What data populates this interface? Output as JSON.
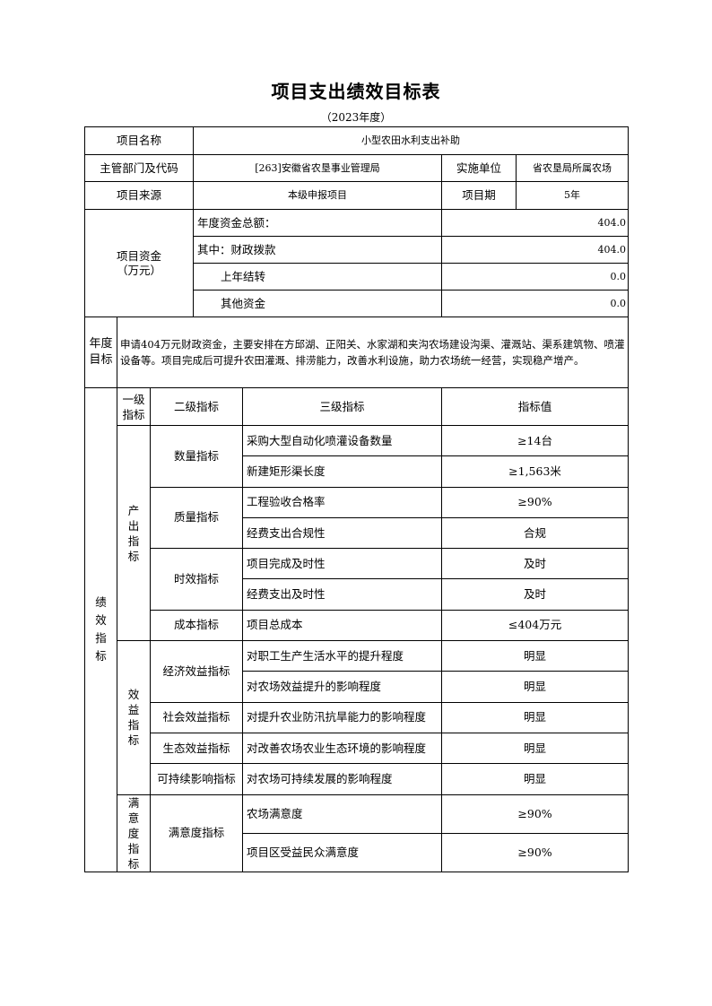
{
  "title": "项目支出绩效目标表",
  "subtitle": "（2023年度）",
  "basic": {
    "project_name_label": "项目名称",
    "project_name": "小型农田水利支出补助",
    "dept_label": "主管部门及代码",
    "dept": "[263]安徽省农垦事业管理局",
    "impl_label": "实施单位",
    "impl": "省农垦局所属农场",
    "source_label": "项目来源",
    "source": "本级申报项目",
    "period_label": "项目期",
    "period": "5年"
  },
  "funds": {
    "label": "项目资金\n（万元）",
    "rows": [
      {
        "label": "年度资金总额：",
        "value": "404.0"
      },
      {
        "label": "其中：财政拨款",
        "value": "404.0"
      },
      {
        "label": "上年结转",
        "value": "0.0"
      },
      {
        "label": "其他资金",
        "value": "0.0"
      }
    ]
  },
  "goal": {
    "label": "年度目标",
    "text": "申请404万元财政资金，主要安排在方邱湖、正阳关、水家湖和夹沟农场建设沟渠、灌溉站、渠系建筑物、喷灌设备等。项目完成后可提升农田灌溉、排涝能力，改善水利设施，助力农场统一经营，实现稳产增产。"
  },
  "performance": {
    "label": "绩效指标",
    "headers": [
      "一级指标",
      "二级指标",
      "三级指标",
      "指标值"
    ],
    "groups": [
      {
        "level1": "产出指标",
        "subs": [
          {
            "level2": "数量指标",
            "items": [
              {
                "level3": "采购大型自动化喷灌设备数量",
                "value": "≥14台"
              },
              {
                "level3": "新建矩形渠长度",
                "value": "≥1,563米"
              }
            ]
          },
          {
            "level2": "质量指标",
            "items": [
              {
                "level3": "工程验收合格率",
                "value": "≥90%"
              },
              {
                "level3": "经费支出合规性",
                "value": "合规"
              }
            ]
          },
          {
            "level2": "时效指标",
            "items": [
              {
                "level3": "项目完成及时性",
                "value": "及时"
              },
              {
                "level3": "经费支出及时性",
                "value": "及时"
              }
            ]
          },
          {
            "level2": "成本指标",
            "items": [
              {
                "level3": "项目总成本",
                "value": "≤404万元"
              }
            ]
          }
        ]
      },
      {
        "level1": "效益指标",
        "subs": [
          {
            "level2": "经济效益指标",
            "items": [
              {
                "level3": "对职工生产生活水平的提升程度",
                "value": "明显"
              },
              {
                "level3": "对农场效益提升的影响程度",
                "value": "明显"
              }
            ]
          },
          {
            "level2": "社会效益指标",
            "items": [
              {
                "level3": "对提升农业防汛抗旱能力的影响程度",
                "value": "明显"
              }
            ]
          },
          {
            "level2": "生态效益指标",
            "items": [
              {
                "level3": "对改善农场农业生态环境的影响程度",
                "value": "明显"
              }
            ]
          },
          {
            "level2": "可持续影响指标",
            "items": [
              {
                "level3": "对农场可持续发展的影响程度",
                "value": "明显"
              }
            ]
          }
        ]
      },
      {
        "level1": "满意度指标",
        "subs": [
          {
            "level2": "满意度指标",
            "items": [
              {
                "level3": "农场满意度",
                "value": "≥90%"
              },
              {
                "level3": "项目区受益民众满意度",
                "value": "≥90%"
              }
            ]
          }
        ]
      }
    ]
  }
}
